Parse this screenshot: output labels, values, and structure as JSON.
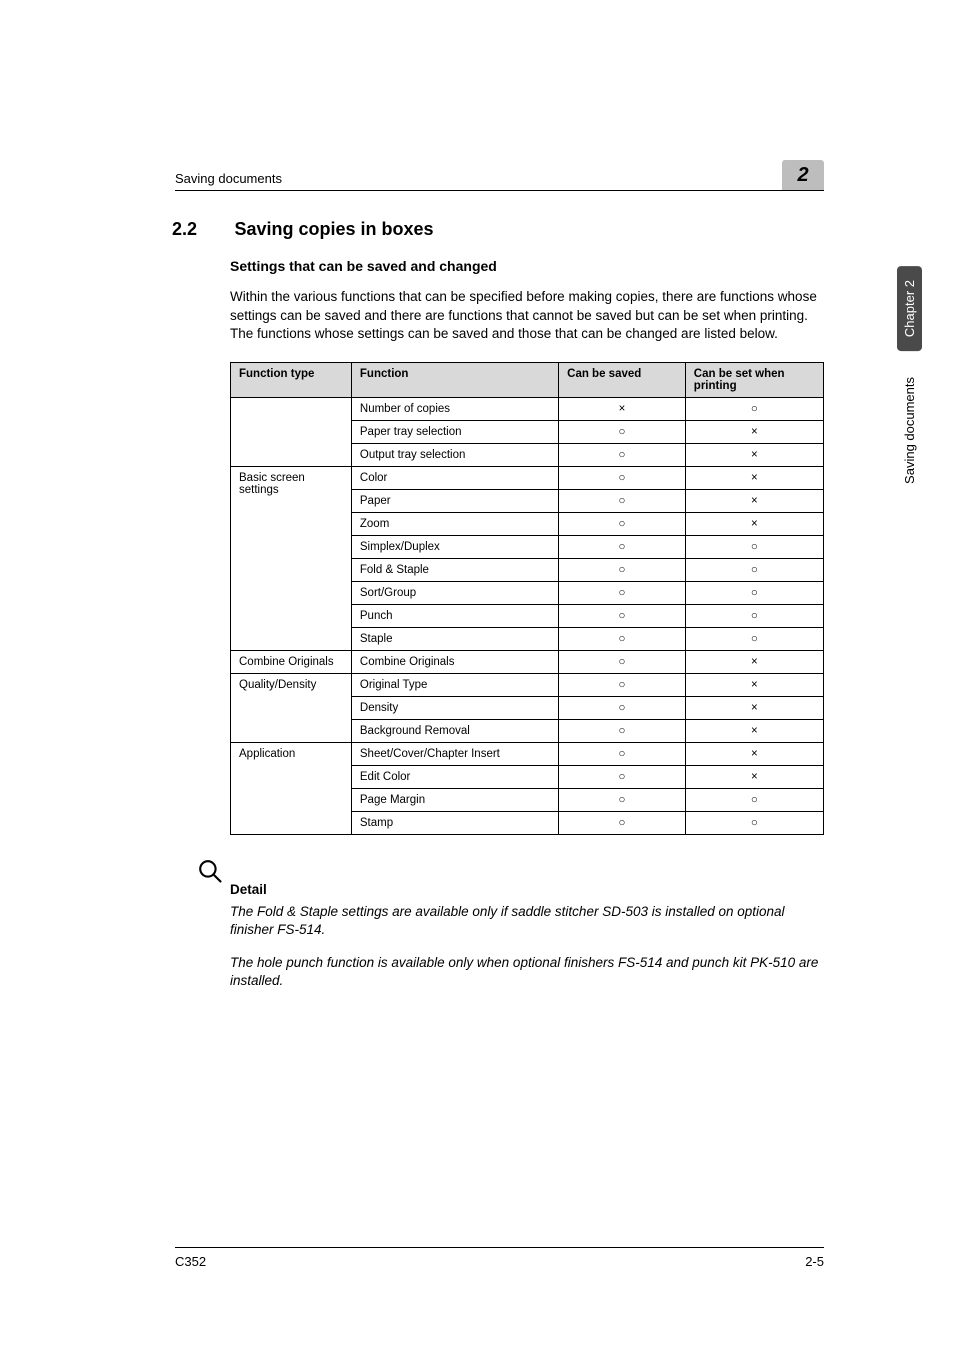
{
  "header": {
    "running_title": "Saving documents",
    "badge": "2"
  },
  "section": {
    "number": "2.2",
    "title": "Saving copies in boxes"
  },
  "subheading": "Settings that can be saved and changed",
  "intro": "Within the various functions that can be specified before making copies, there are functions whose settings can be saved and there are functions that cannot be saved but can be set when printing. The functions whose settings can be saved and those that can be changed are listed below.",
  "table": {
    "headers": {
      "type": "Function type",
      "function": "Function",
      "saved": "Can be saved",
      "print": "Can be set when printing"
    },
    "groups": [
      {
        "type": "",
        "rows": [
          {
            "function": "Number of copies",
            "saved": "×",
            "print": "○"
          },
          {
            "function": "Paper tray selection",
            "saved": "○",
            "print": "×"
          },
          {
            "function": "Output tray selection",
            "saved": "○",
            "print": "×"
          }
        ]
      },
      {
        "type": "Basic screen settings",
        "rows": [
          {
            "function": "Color",
            "saved": "○",
            "print": "×"
          },
          {
            "function": "Paper",
            "saved": "○",
            "print": "×"
          },
          {
            "function": "Zoom",
            "saved": "○",
            "print": "×"
          },
          {
            "function": "Simplex/Duplex",
            "saved": "○",
            "print": "○"
          },
          {
            "function": "Fold & Staple",
            "saved": "○",
            "print": "○"
          },
          {
            "function": "Sort/Group",
            "saved": "○",
            "print": "○"
          },
          {
            "function": "Punch",
            "saved": "○",
            "print": "○"
          },
          {
            "function": "Staple",
            "saved": "○",
            "print": "○"
          }
        ]
      },
      {
        "type": "Combine Originals",
        "rows": [
          {
            "function": "Combine Originals",
            "saved": "○",
            "print": "×"
          }
        ]
      },
      {
        "type": "Quality/Density",
        "rows": [
          {
            "function": "Original Type",
            "saved": "○",
            "print": "×"
          },
          {
            "function": "Density",
            "saved": "○",
            "print": "×"
          },
          {
            "function": "Background Removal",
            "saved": "○",
            "print": "×"
          }
        ]
      },
      {
        "type": "Application",
        "rows": [
          {
            "function": "Sheet/Cover/Chapter Insert",
            "saved": "○",
            "print": "×"
          },
          {
            "function": "Edit Color",
            "saved": "○",
            "print": "×"
          },
          {
            "function": "Page Margin",
            "saved": "○",
            "print": "○"
          },
          {
            "function": "Stamp",
            "saved": "○",
            "print": "○"
          }
        ]
      }
    ]
  },
  "detail": {
    "label": "Detail",
    "p1": "The Fold & Staple settings are available only if saddle stitcher SD-503 is installed on optional finisher FS-514.",
    "p2": "The hole punch function is available only when optional finishers FS-514 and punch kit PK-510 are installed."
  },
  "side": {
    "chapter": "Chapter 2",
    "section": "Saving documents"
  },
  "footer": {
    "left": "C352",
    "right": "2-5"
  }
}
